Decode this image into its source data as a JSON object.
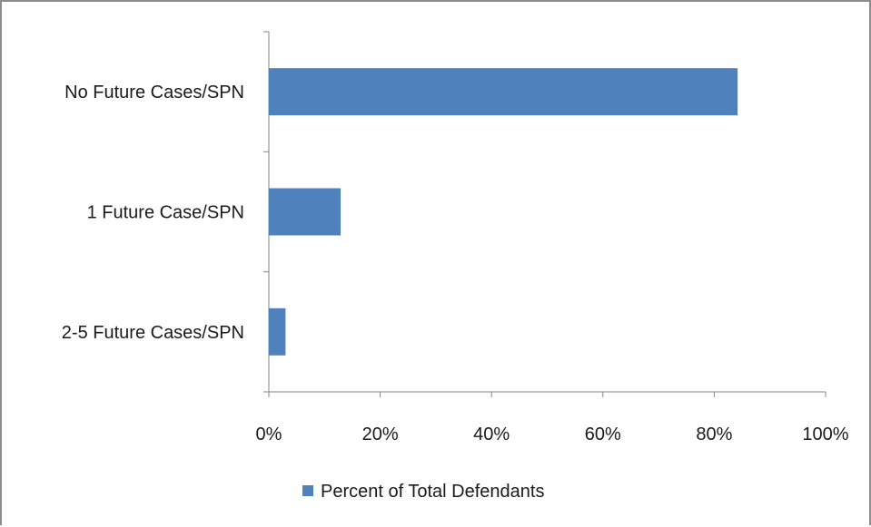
{
  "chart_data": {
    "type": "bar",
    "orientation": "horizontal",
    "categories": [
      "No Future Cases/SPN",
      "1 Future Case/SPN",
      "2-5 Future Cases/SPN"
    ],
    "series": [
      {
        "name": "Percent of Total Defendants",
        "values": [
          84.2,
          12.9,
          3.0
        ],
        "color": "#4f81bd"
      }
    ],
    "xlim": [
      0,
      100
    ],
    "x_ticks": [
      0,
      20,
      40,
      60,
      80,
      100
    ],
    "x_tick_labels": [
      "0%",
      "20%",
      "40%",
      "60%",
      "80%",
      "100%"
    ],
    "grid": false,
    "legend": {
      "position": "bottom"
    },
    "title": "",
    "xlabel": "",
    "ylabel": ""
  }
}
